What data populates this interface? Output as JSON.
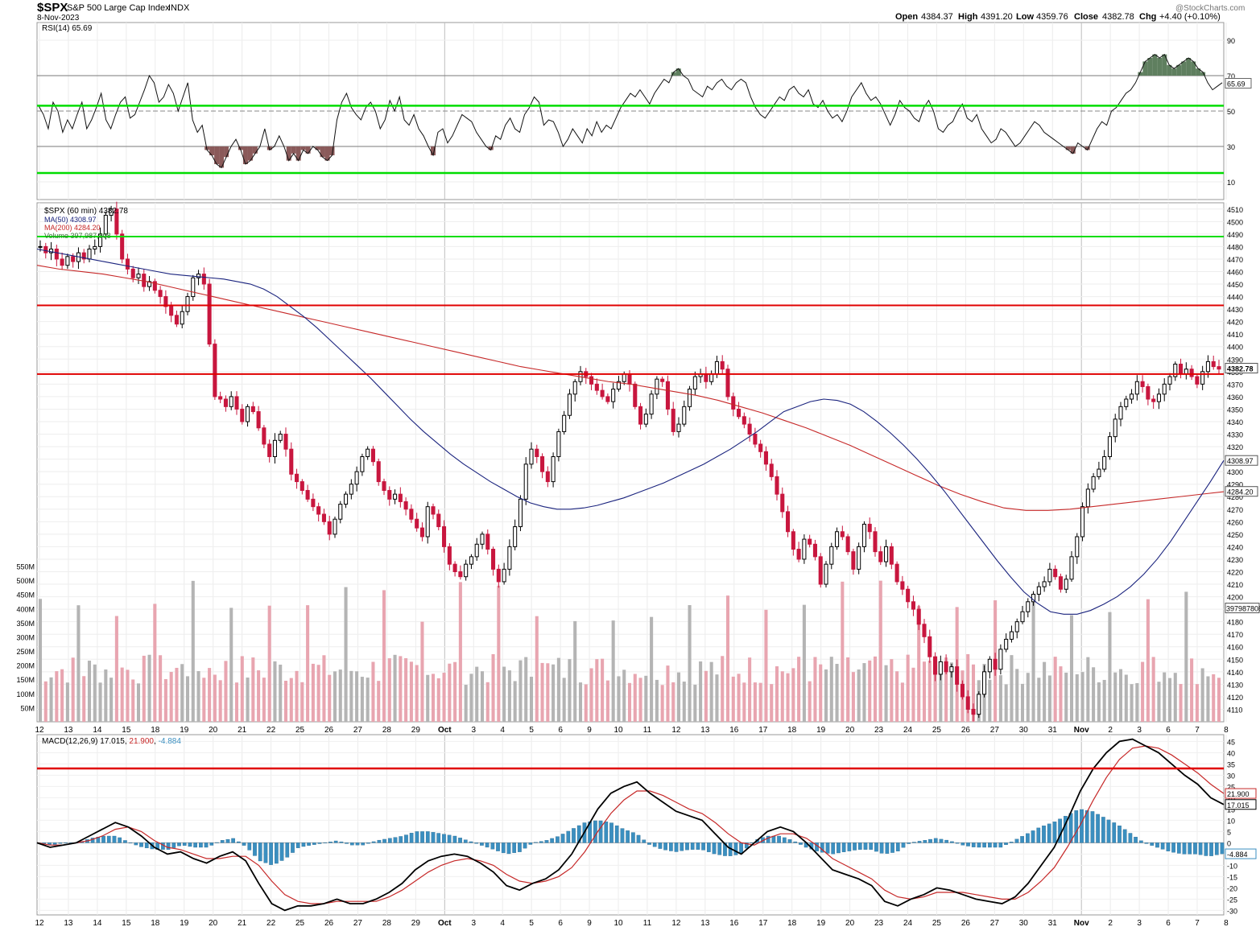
{
  "header": {
    "symbol": "$SPX",
    "name": "S&P 500 Large Cap Index",
    "exchange": "INDX",
    "date": "8-Nov-2023",
    "watermark": "@StockCharts.com",
    "open_label": "Open",
    "open": "4384.37",
    "high_label": "High",
    "high": "4391.20",
    "low_label": "Low",
    "low": "4359.76",
    "close_label": "Close",
    "close": "4382.78",
    "chg_label": "Chg",
    "chg": "+4.40 (+0.10%)"
  },
  "colors": {
    "up_candle": "#000000",
    "down_candle": "#c8163e",
    "ma50": "#1a237e",
    "ma200": "#c62828",
    "volume_up": "#b4b4b4",
    "volume_down": "#e8a5b0",
    "rsi_over": "#5f7f5f",
    "rsi_under": "#8a5a5a",
    "macd_hist": "#3b8fc0",
    "guide_green": "#00dd00",
    "guide_red": "#e00000",
    "grid": "#d8d8d8"
  },
  "x_axis_labels": [
    "12",
    "13",
    "14",
    "15",
    "18",
    "19",
    "20",
    "21",
    "22",
    "25",
    "26",
    "27",
    "28",
    "29",
    "Oct",
    "3",
    "4",
    "5",
    "6",
    "9",
    "10",
    "11",
    "12",
    "13",
    "16",
    "17",
    "18",
    "19",
    "20",
    "23",
    "24",
    "25",
    "26",
    "27",
    "30",
    "31",
    "Nov",
    "2",
    "3",
    "6",
    "7",
    "8"
  ],
  "chart_data": [
    {
      "type": "line",
      "title": "RSI(14) 65.69",
      "indicator": "RSI(14)",
      "last_value": "65.69",
      "yticks": [
        "90",
        "70",
        "50",
        "30",
        "10"
      ],
      "ylim": [
        0,
        100
      ],
      "levels": [
        70,
        50,
        30
      ],
      "guide_lines": [
        53,
        15
      ],
      "series": [
        {
          "name": "RSI(14)",
          "values": [
            53,
            48,
            40,
            55,
            50,
            38,
            45,
            40,
            48,
            55,
            40,
            45,
            52,
            60,
            45,
            40,
            48,
            55,
            58,
            46,
            48,
            55,
            62,
            70,
            66,
            55,
            58,
            65,
            60,
            50,
            58,
            66,
            45,
            38,
            42,
            28,
            25,
            20,
            18,
            24,
            30,
            34,
            28,
            20,
            22,
            26,
            30,
            40,
            28,
            30,
            36,
            30,
            22,
            26,
            22,
            28,
            26,
            30,
            28,
            24,
            22,
            25,
            45,
            55,
            60,
            52,
            48,
            45,
            52,
            55,
            50,
            40,
            45,
            56,
            50,
            58,
            45,
            42,
            48,
            40,
            36,
            30,
            25,
            38,
            40,
            32,
            36,
            42,
            48,
            46,
            44,
            38,
            34,
            30,
            28,
            36,
            34,
            42,
            46,
            40,
            38,
            48,
            52,
            58,
            55,
            42,
            45,
            44,
            38,
            30,
            34,
            40,
            36,
            32,
            40,
            36,
            44,
            38,
            42,
            40,
            46,
            52,
            56,
            60,
            58,
            62,
            58,
            54,
            60,
            64,
            68,
            66,
            72,
            74,
            70,
            68,
            62,
            60,
            58,
            64,
            62,
            66,
            68,
            64,
            62,
            66,
            68,
            66,
            58,
            52,
            48,
            46,
            50,
            54,
            58,
            56,
            62,
            64,
            60,
            58,
            62,
            54,
            52,
            56,
            50,
            46,
            48,
            44,
            50,
            58,
            62,
            66,
            60,
            56,
            58,
            54,
            48,
            42,
            48,
            56,
            52,
            50,
            46,
            44,
            52,
            56,
            50,
            40,
            38,
            42,
            44,
            50,
            54,
            46,
            44,
            48,
            40,
            36,
            32,
            34,
            40,
            38,
            34,
            30,
            32,
            36,
            40,
            44,
            42,
            38,
            36,
            34,
            32,
            30,
            28,
            26,
            32,
            30,
            28,
            34,
            40,
            44,
            42,
            50,
            52,
            56,
            60,
            62,
            66,
            72,
            78,
            80,
            82,
            80,
            82,
            76,
            74,
            76,
            78,
            80,
            78,
            74,
            72,
            66,
            62,
            64,
            66
          ]
        }
      ]
    },
    {
      "type": "candlestick",
      "title": "$SPX (60 min) 4382.78",
      "legend": [
        {
          "name": "$SPX (60 min)",
          "value": "4382.78"
        },
        {
          "name": "MA(50)",
          "value": "4308.97"
        },
        {
          "name": "MA(200)",
          "value": "4284.20"
        },
        {
          "name": "Volume",
          "value": "397,987,808"
        }
      ],
      "ylim": [
        4100,
        4515
      ],
      "yticks": [
        4510,
        4500,
        4490,
        4480,
        4470,
        4460,
        4450,
        4440,
        4430,
        4420,
        4410,
        4400,
        4390,
        4380,
        4370,
        4360,
        4350,
        4340,
        4330,
        4320,
        4310,
        4300,
        4290,
        4280,
        4270,
        4260,
        4250,
        4240,
        4230,
        4220,
        4210,
        4200,
        4190,
        4180,
        4170,
        4160,
        4150,
        4140,
        4130,
        4120,
        4110
      ],
      "last_price_label": "4382.78",
      "ma50_label": "4308.97",
      "ma200_label": "4284.20",
      "volume_label": "397987808",
      "guide_lines": [
        {
          "color": "green",
          "value": 4488
        },
        {
          "color": "red",
          "value": 4433
        },
        {
          "color": "red",
          "value": 4378
        }
      ],
      "price_path": [
        4480,
        4475,
        4478,
        4470,
        4465,
        4472,
        4468,
        4475,
        4470,
        4478,
        4480,
        4490,
        4505,
        4510,
        4490,
        4470,
        4462,
        4455,
        4458,
        4448,
        4452,
        4445,
        4440,
        4432,
        4425,
        4418,
        4428,
        4440,
        4455,
        4458,
        4450,
        4402,
        4360,
        4358,
        4352,
        4360,
        4350,
        4340,
        4352,
        4348,
        4335,
        4322,
        4312,
        4325,
        4330,
        4318,
        4298,
        4292,
        4285,
        4278,
        4272,
        4266,
        4260,
        4250,
        4262,
        4274,
        4282,
        4290,
        4300,
        4312,
        4318,
        4308,
        4292,
        4285,
        4278,
        4282,
        4276,
        4270,
        4262,
        4255,
        4248,
        4272,
        4266,
        4256,
        4240,
        4226,
        4220,
        4216,
        4226,
        4232,
        4242,
        4250,
        4238,
        4222,
        4212,
        4222,
        4240,
        4256,
        4278,
        4306,
        4318,
        4312,
        4300,
        4292,
        4312,
        4332,
        4345,
        4362,
        4372,
        4380,
        4376,
        4370,
        4365,
        4360,
        4356,
        4366,
        4372,
        4378,
        4370,
        4352,
        4338,
        4346,
        4362,
        4374,
        4372,
        4350,
        4332,
        4338,
        4352,
        4366,
        4376,
        4378,
        4372,
        4378,
        4388,
        4382,
        4360,
        4350,
        4344,
        4338,
        4330,
        4322,
        4316,
        4306,
        4296,
        4282,
        4268,
        4252,
        4238,
        4230,
        4246,
        4242,
        4232,
        4210,
        4226,
        4240,
        4252,
        4248,
        4236,
        4222,
        4240,
        4258,
        4252,
        4236,
        4228,
        4240,
        4226,
        4212,
        4206,
        4196,
        4190,
        4178,
        4168,
        4152,
        4138,
        4148,
        4140,
        4144,
        4130,
        4120,
        4110,
        4106,
        4122,
        4140,
        4150,
        4142,
        4158,
        4166,
        4172,
        4180,
        4188,
        4196,
        4202,
        4208,
        4212,
        4222,
        4216,
        4206,
        4214,
        4232,
        4248,
        4272,
        4286,
        4296,
        4302,
        4312,
        4328,
        4342,
        4352,
        4358,
        4362,
        4372,
        4368,
        4358,
        4356,
        4362,
        4370,
        4376,
        4386,
        4378,
        4382,
        4376,
        4370,
        4380,
        4388,
        4384,
        4382
      ],
      "ma50": [
        4478,
        4476,
        4474,
        4472,
        4470,
        4468,
        4466,
        4464,
        4462,
        4460,
        4458,
        4457,
        4456,
        4455,
        4454,
        4452,
        4450,
        4446,
        4440,
        4432,
        4424,
        4415,
        4405,
        4395,
        4385,
        4375,
        4364,
        4353,
        4342,
        4332,
        4323,
        4314,
        4306,
        4299,
        4292,
        4286,
        4280,
        4275,
        4272,
        4270,
        4270,
        4271,
        4273,
        4276,
        4279,
        4283,
        4287,
        4291,
        4296,
        4301,
        4306,
        4312,
        4318,
        4325,
        4332,
        4340,
        4348,
        4352,
        4356,
        4358,
        4357,
        4354,
        4348,
        4340,
        4331,
        4321,
        4310,
        4298,
        4285,
        4271,
        4257,
        4243,
        4229,
        4216,
        4204,
        4195,
        4188,
        4186,
        4186,
        4189,
        4194,
        4200,
        4208,
        4218,
        4230,
        4244,
        4260,
        4276,
        4292,
        4309
      ],
      "ma200": [
        4465,
        4462,
        4460,
        4458,
        4455,
        4452,
        4448,
        4444,
        4440,
        4436,
        4432,
        4428,
        4424,
        4420,
        4416,
        4412,
        4408,
        4404,
        4400,
        4396,
        4392,
        4388,
        4384,
        4381,
        4378,
        4375,
        4372,
        4370,
        4367,
        4364,
        4361,
        4357,
        4352,
        4347,
        4341,
        4335,
        4328,
        4321,
        4313,
        4305,
        4297,
        4289,
        4282,
        4276,
        4271,
        4269,
        4269,
        4270,
        4272,
        4274,
        4276,
        4278,
        4280,
        4282,
        4284
      ]
    },
    {
      "type": "bar",
      "title": "Volume",
      "yticks": [
        "550M",
        "500M",
        "450M",
        "400M",
        "350M",
        "300M",
        "250M",
        "200M",
        "150M",
        "100M",
        "50M"
      ],
      "ylim": [
        0,
        560
      ],
      "unit": "M",
      "values_approx": "hourly volumes mostly 120M-250M, spikes to 400M-500M at session opens"
    },
    {
      "type": "line",
      "title": "MACD(12,26,9) 17.015, 21.900, -4.884",
      "indicator": "MACD(12,26,9)",
      "macd_value": "17.015",
      "signal_value": "21.900",
      "hist_value": "-4.884",
      "yticks": [
        "45",
        "40",
        "35",
        "30",
        "25",
        "20",
        "15",
        "10",
        "5",
        "0",
        "-5",
        "-10",
        "-15",
        "-20",
        "-25",
        "-30"
      ],
      "ylim": [
        -32,
        48
      ],
      "guide_line": 33,
      "macd_label": "17.015",
      "signal_label": "21.900",
      "hist_label": "-4.884",
      "series": [
        {
          "name": "MACD",
          "values": [
            0,
            -2,
            -1,
            0,
            3,
            6,
            9,
            7,
            3,
            -2,
            -5,
            -4,
            -7,
            -9,
            -6,
            -4,
            -8,
            -18,
            -27,
            -30,
            -28,
            -28,
            -27,
            -25,
            -27,
            -27,
            -25,
            -22,
            -18,
            -12,
            -8,
            -6,
            -5,
            -6,
            -9,
            -13,
            -19,
            -21,
            -18,
            -16,
            -12,
            -5,
            5,
            15,
            22,
            25,
            27,
            22,
            18,
            14,
            12,
            10,
            4,
            -2,
            -5,
            0,
            5,
            7,
            5,
            0,
            -6,
            -12,
            -14,
            -16,
            -19,
            -26,
            -28,
            -25,
            -23,
            -20,
            -21,
            -23,
            -25,
            -26,
            -27,
            -24,
            -18,
            -10,
            -2,
            10,
            23,
            33,
            40,
            45,
            46,
            43,
            40,
            35,
            30,
            26,
            20,
            17
          ]
        },
        {
          "name": "Signal",
          "values": [
            0,
            -1,
            -1,
            0,
            1,
            3,
            6,
            7,
            5,
            1,
            -2,
            -3,
            -5,
            -7,
            -7,
            -6,
            -6,
            -10,
            -17,
            -23,
            -26,
            -27,
            -27,
            -26,
            -26,
            -26,
            -26,
            -24,
            -21,
            -17,
            -13,
            -10,
            -8,
            -7,
            -8,
            -10,
            -14,
            -17,
            -18,
            -17,
            -15,
            -11,
            -4,
            5,
            13,
            19,
            23,
            23,
            21,
            18,
            15,
            13,
            9,
            4,
            0,
            -1,
            2,
            4,
            4,
            2,
            -2,
            -7,
            -10,
            -13,
            -16,
            -21,
            -24,
            -25,
            -24,
            -22,
            -22,
            -22,
            -23,
            -24,
            -25,
            -25,
            -22,
            -17,
            -11,
            -2,
            8,
            19,
            29,
            37,
            42,
            43,
            42,
            39,
            35,
            31,
            26,
            21.9
          ]
        },
        {
          "name": "Histogram",
          "values": [
            0,
            -1,
            0,
            0,
            2,
            3,
            3,
            0,
            -2,
            -3,
            -3,
            -1,
            -2,
            -2,
            1,
            2,
            -2,
            -8,
            -10,
            -7,
            -2,
            -1,
            0,
            1,
            -1,
            -1,
            1,
            2,
            3,
            5,
            5,
            4,
            3,
            1,
            -1,
            -3,
            -5,
            -4,
            0,
            1,
            3,
            6,
            9,
            10,
            9,
            6,
            4,
            -1,
            -3,
            -4,
            -3,
            -3,
            -5,
            -6,
            -5,
            1,
            3,
            3,
            1,
            -2,
            -4,
            -5,
            -4,
            -3,
            -3,
            -5,
            -4,
            0,
            1,
            2,
            1,
            -1,
            -2,
            -2,
            -2,
            1,
            4,
            7,
            9,
            12,
            15,
            14,
            11,
            8,
            4,
            0,
            -2,
            -4,
            -5,
            -5,
            -6,
            -4.9
          ]
        }
      ]
    }
  ]
}
